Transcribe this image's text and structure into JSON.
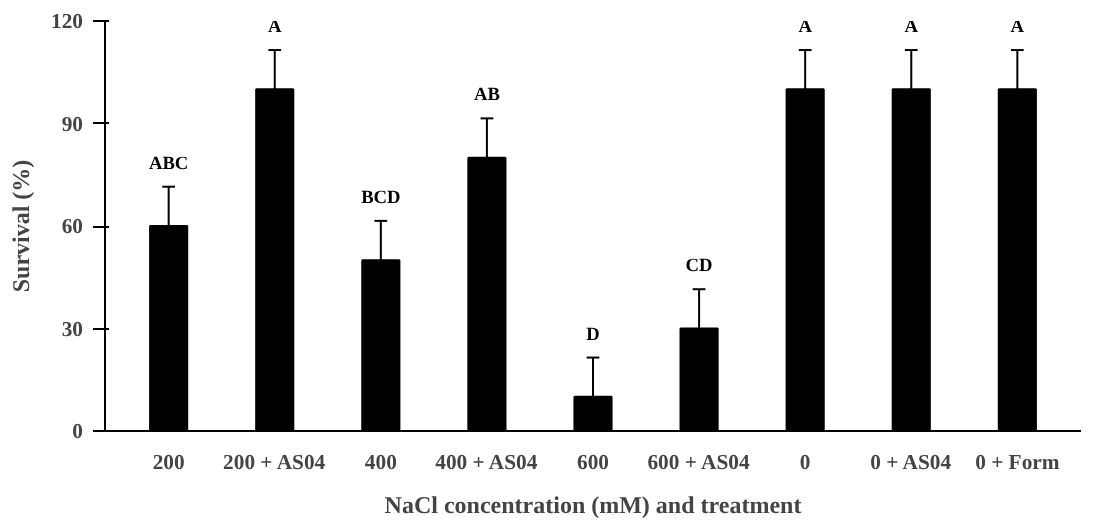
{
  "chart_data": {
    "type": "bar",
    "xlabel": "NaCl concentration (mM) and treatment",
    "ylabel": "Survival (%)",
    "categories": [
      "200",
      "200 + AS04",
      "400",
      "400 + AS04",
      "600",
      "600 + AS04",
      "0",
      "0 + AS04",
      "0 + Form"
    ],
    "values": [
      60,
      100,
      50,
      80,
      10,
      30,
      100,
      100,
      100
    ],
    "color": "#000000",
    "errors": [
      [
        60,
        71.5
      ],
      [
        100,
        111.5
      ],
      [
        50,
        61.5
      ],
      [
        80,
        91.5
      ],
      [
        10,
        21.5
      ],
      [
        30,
        41.5
      ],
      [
        100,
        111.5
      ],
      [
        100,
        111.5
      ],
      [
        100,
        111.5
      ]
    ],
    "ylim": [
      0,
      120
    ],
    "yticks": [
      0,
      30,
      60,
      90,
      120
    ],
    "grid": false,
    "annotations": [
      "ABC",
      "A",
      "BCD",
      "AB",
      "D",
      "CD",
      "A",
      "A",
      "A"
    ]
  }
}
